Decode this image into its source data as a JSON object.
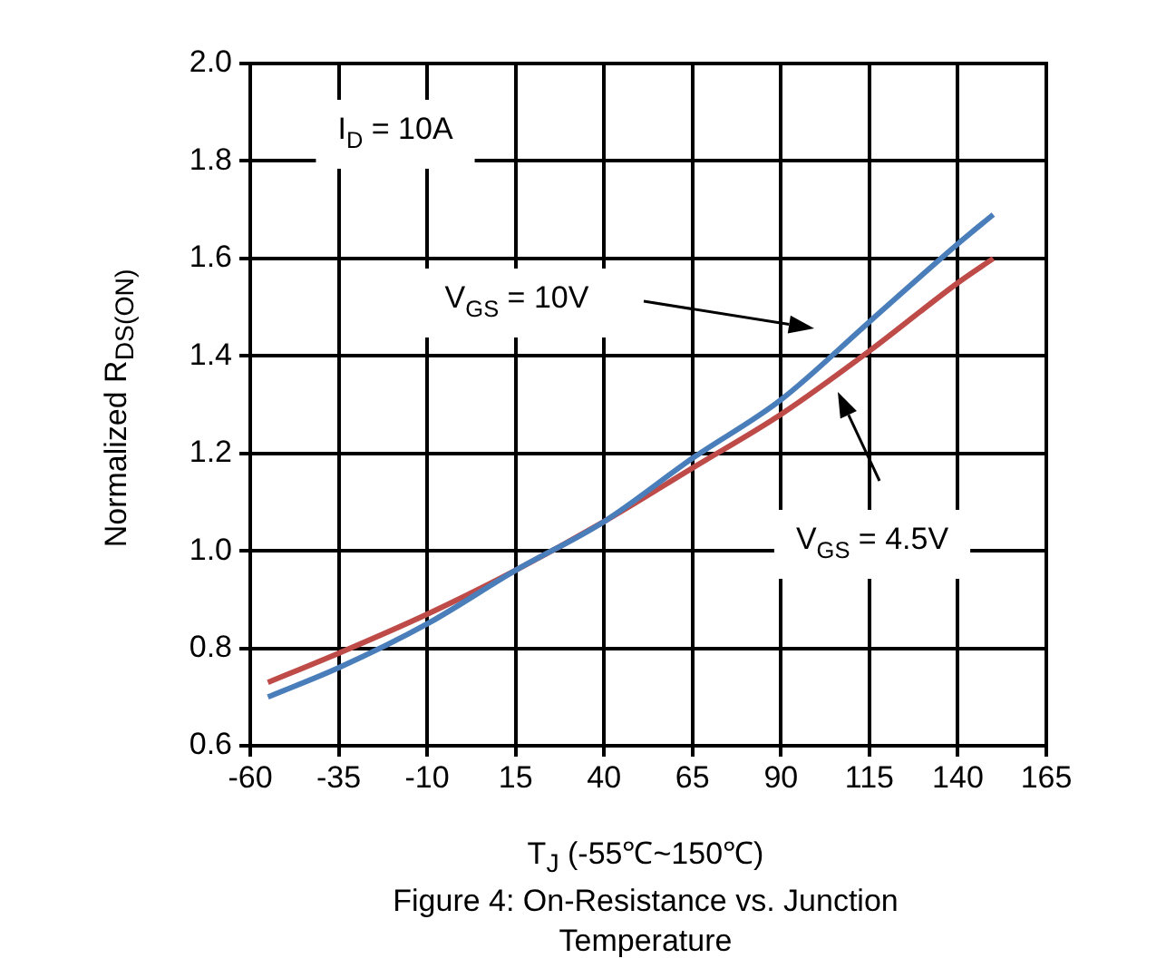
{
  "chart_data": {
    "type": "line",
    "title": "Figure 4: On-Resistance vs. Junction Temperature",
    "xlabel": "T$_{J}$ (-55℃~150℃)",
    "ylabel": "Normalized R$_{DS(ON)}$",
    "annotations": [
      "I$_{D}$ = 10A",
      "V$_{GS}$ = 10V",
      "V$_{GS}$ = 4.5V"
    ],
    "x": [
      -55,
      -35,
      -10,
      15,
      40,
      65,
      90,
      115,
      140,
      150
    ],
    "series": [
      {
        "color": "#4a7ebb",
        "values": [
          0.7,
          0.76,
          0.85,
          0.96,
          1.06,
          1.19,
          1.31,
          1.47,
          1.63,
          1.69
        ]
      },
      {
        "color": "#be4b48",
        "values": [
          0.73,
          0.79,
          0.87,
          0.96,
          1.06,
          1.17,
          1.28,
          1.41,
          1.55,
          1.6
        ]
      }
    ],
    "xlim": [
      -60,
      165
    ],
    "xticks": [
      -60,
      -35,
      -10,
      15,
      40,
      65,
      90,
      115,
      140,
      165
    ],
    "ylim": [
      0.6,
      2.0
    ],
    "yticks": [
      0.6,
      0.8,
      {
        "value": 1,
        "label": "1.0"
      },
      1.2,
      1.4,
      1.6,
      1.8,
      {
        "value": 2,
        "label": "2.0"
      }
    ],
    "grid": true,
    "legend": false,
    "marker": "none",
    "line_style": "solid"
  }
}
